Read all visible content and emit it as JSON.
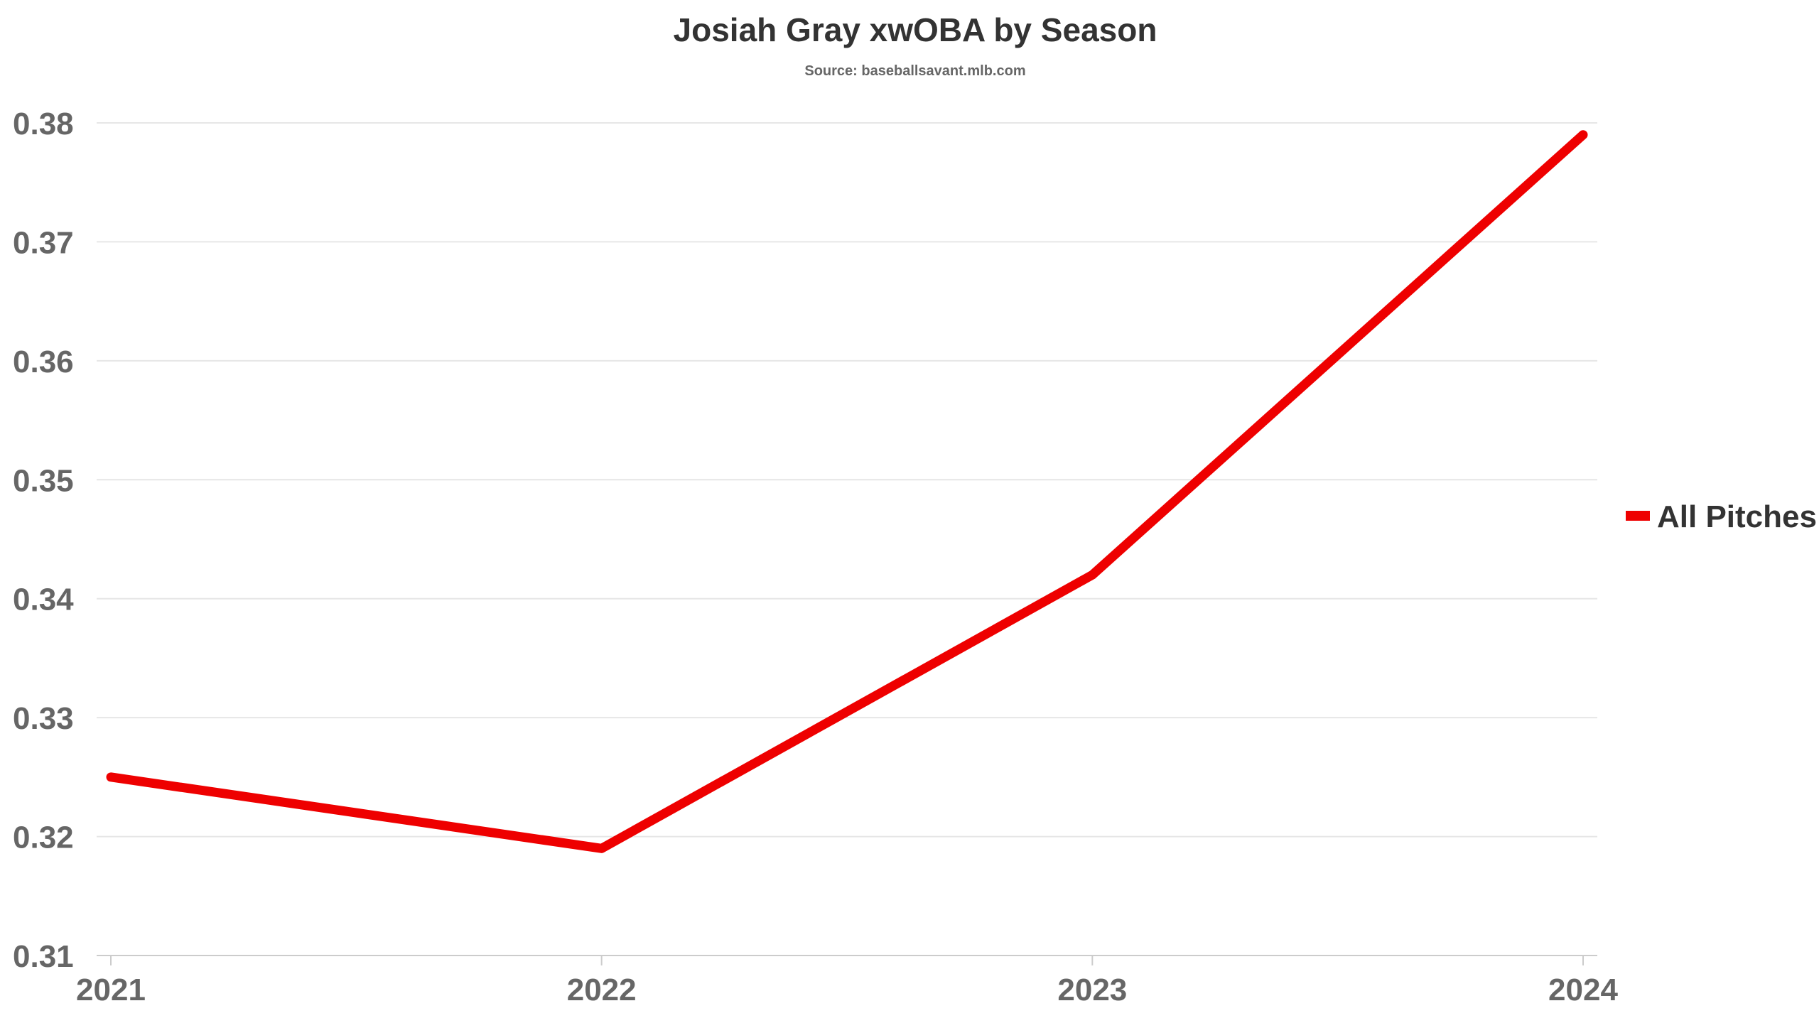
{
  "chart_data": {
    "type": "line",
    "title": "Josiah Gray xwOBA by Season",
    "subtitle": "Source: baseballsavant.mlb.com",
    "x": [
      "2021",
      "2022",
      "2023",
      "2024"
    ],
    "series": [
      {
        "name": "All Pitches",
        "color": "#ee0000",
        "values": [
          0.325,
          0.319,
          0.342,
          0.379
        ]
      }
    ],
    "ylim": [
      0.31,
      0.38
    ],
    "yticks": [
      "0.31",
      "0.32",
      "0.33",
      "0.34",
      "0.35",
      "0.36",
      "0.37",
      "0.38"
    ],
    "grid": true,
    "legend_position": "right"
  }
}
